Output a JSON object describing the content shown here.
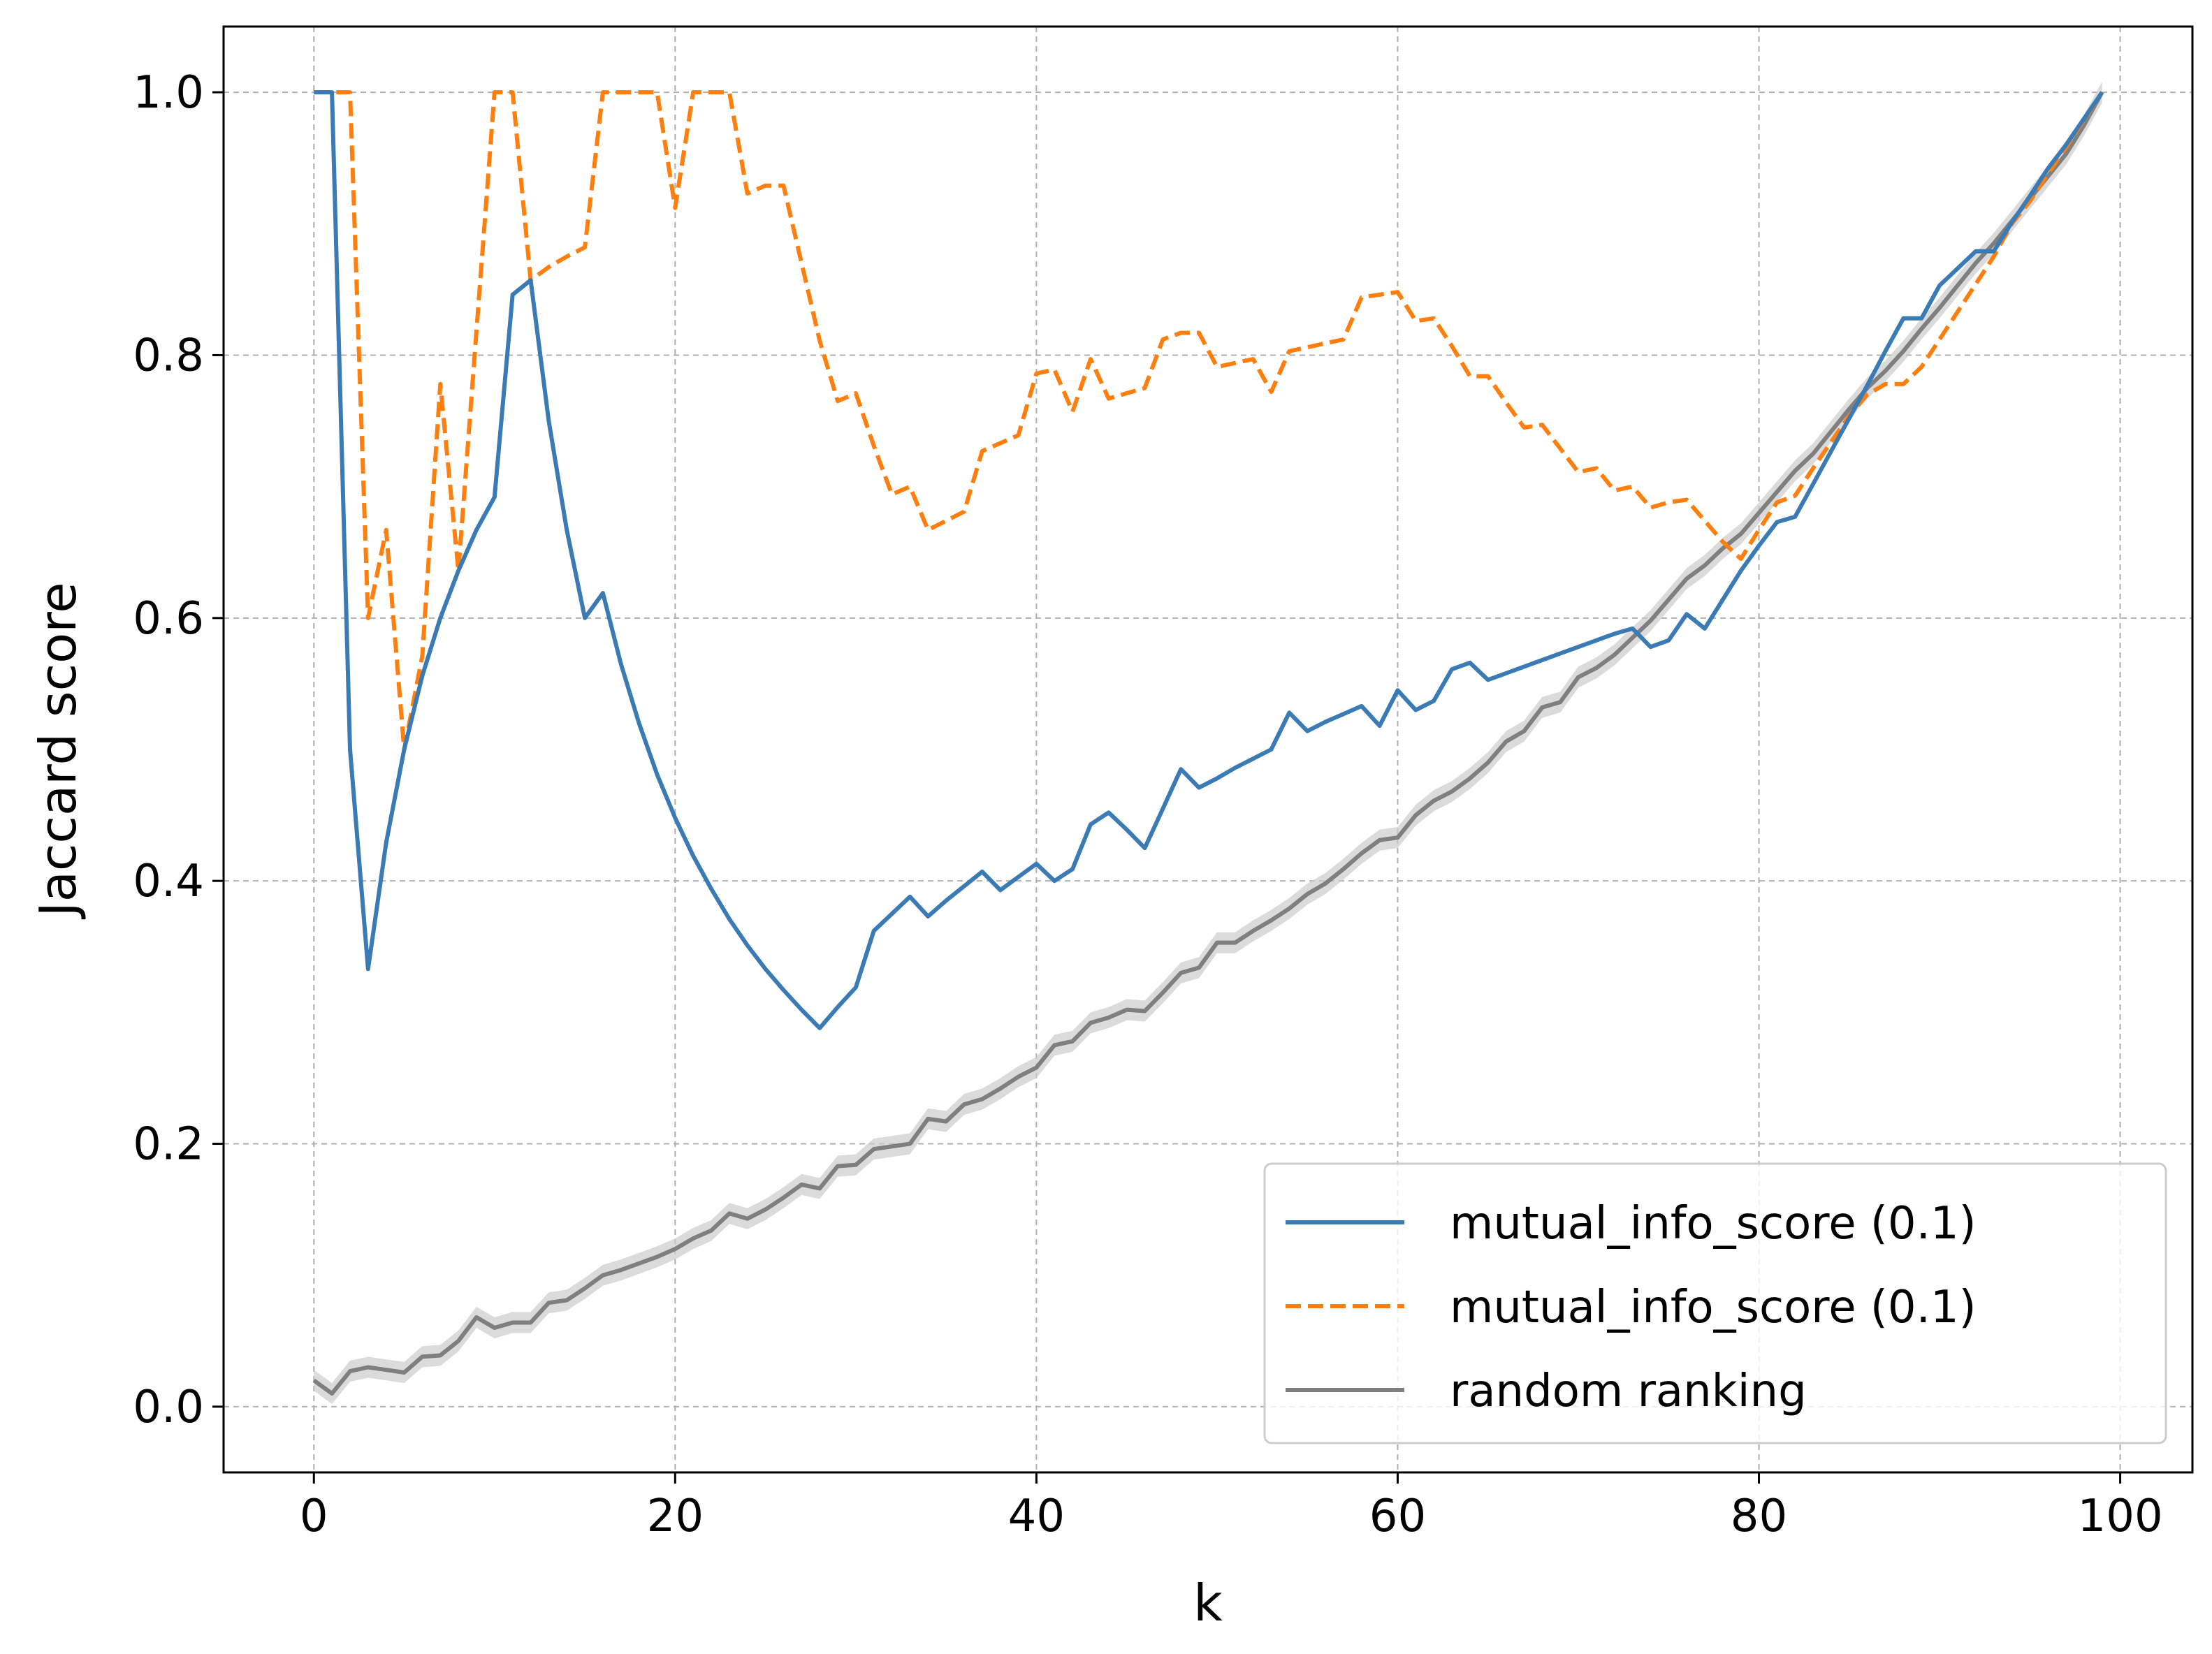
{
  "chart_data": {
    "type": "line",
    "title": "",
    "xlabel": "k",
    "ylabel": "Jaccard score",
    "xlim": [
      -5,
      104
    ],
    "ylim": [
      -0.05,
      1.05
    ],
    "xticks": [
      0,
      20,
      40,
      60,
      80,
      100
    ],
    "yticks": [
      0.0,
      0.2,
      0.4,
      0.6,
      0.8,
      1.0
    ],
    "xtick_labels": [
      "0",
      "20",
      "40",
      "60",
      "80",
      "100"
    ],
    "ytick_labels": [
      "0.0",
      "0.2",
      "0.4",
      "0.6",
      "0.8",
      "1.0"
    ],
    "grid": true,
    "legend_position": "lower-right",
    "series": [
      {
        "name": "mutual_info_score (0.1)",
        "color": "#3a7bb5",
        "style": "solid",
        "x": [
          0,
          1,
          2,
          3,
          4,
          5,
          6,
          7,
          8,
          9,
          10,
          11,
          12,
          13,
          14,
          15,
          16,
          17,
          18,
          19,
          20,
          21,
          22,
          23,
          24,
          25,
          26,
          27,
          28,
          29,
          30,
          31,
          32,
          33,
          34,
          35,
          36,
          37,
          38,
          39,
          40,
          41,
          42,
          43,
          44,
          45,
          46,
          47,
          48,
          49,
          50,
          51,
          52,
          53,
          54,
          55,
          56,
          57,
          58,
          59,
          60,
          61,
          62,
          63,
          64,
          65,
          66,
          67,
          68,
          69,
          70,
          71,
          72,
          73,
          74,
          75,
          76,
          77,
          78,
          79,
          80,
          81,
          82,
          83,
          84,
          85,
          86,
          87,
          88,
          89,
          90,
          91,
          92,
          93,
          94,
          95,
          96,
          97,
          98,
          99
        ],
        "y": [
          1.0,
          1.0,
          0.5,
          0.333,
          0.429,
          0.5,
          0.556,
          0.6,
          0.636,
          0.667,
          0.692,
          0.846,
          0.857,
          0.75,
          0.667,
          0.6,
          0.619,
          0.565,
          0.52,
          0.481,
          0.448,
          0.419,
          0.394,
          0.371,
          0.351,
          0.333,
          0.317,
          0.302,
          0.288,
          0.304,
          0.319,
          0.362,
          0.375,
          0.388,
          0.373,
          0.385,
          0.396,
          0.407,
          0.393,
          0.403,
          0.413,
          0.4,
          0.409,
          0.443,
          0.452,
          0.439,
          0.425,
          0.455,
          0.485,
          0.471,
          0.478,
          0.486,
          0.493,
          0.5,
          0.528,
          0.514,
          0.521,
          0.527,
          0.533,
          0.518,
          0.545,
          0.53,
          0.537,
          0.561,
          0.566,
          0.553,
          0.558,
          0.563,
          0.568,
          0.573,
          0.578,
          0.583,
          0.588,
          0.592,
          0.578,
          0.583,
          0.603,
          0.592,
          0.614,
          0.636,
          0.655,
          0.673,
          0.677,
          0.702,
          0.727,
          0.752,
          0.777,
          0.803,
          0.828,
          0.828,
          0.853,
          0.866,
          0.879,
          0.879,
          0.901,
          0.921,
          0.942,
          0.96,
          0.98,
          1.0
        ]
      },
      {
        "name": "mutual_info_score (0.1)",
        "color": "#ff7f0e",
        "style": "dashed",
        "x": [
          0,
          1,
          2,
          3,
          4,
          5,
          6,
          7,
          8,
          9,
          10,
          11,
          12,
          13,
          14,
          15,
          16,
          17,
          18,
          19,
          20,
          21,
          22,
          23,
          24,
          25,
          26,
          27,
          28,
          29,
          30,
          31,
          32,
          33,
          34,
          35,
          36,
          37,
          38,
          39,
          40,
          41,
          42,
          43,
          44,
          45,
          46,
          47,
          48,
          49,
          50,
          51,
          52,
          53,
          54,
          55,
          56,
          57,
          58,
          59,
          60,
          61,
          62,
          63,
          64,
          65,
          66,
          67,
          68,
          69,
          70,
          71,
          72,
          73,
          74,
          75,
          76,
          77,
          78,
          79,
          80,
          81,
          82,
          83,
          84,
          85,
          86,
          87,
          88,
          89,
          90,
          91,
          92,
          93,
          94,
          95,
          96,
          97,
          98,
          99
        ],
        "y": [
          1.0,
          1.0,
          1.0,
          0.6,
          0.667,
          0.5,
          0.571,
          0.778,
          0.636,
          0.818,
          1.0,
          1.0,
          0.857,
          0.867,
          0.875,
          0.882,
          1.0,
          1.0,
          1.0,
          1.0,
          0.912,
          1.0,
          1.0,
          1.0,
          0.923,
          0.929,
          0.929,
          0.87,
          0.811,
          0.765,
          0.771,
          0.731,
          0.694,
          0.7,
          0.667,
          0.674,
          0.681,
          0.727,
          0.733,
          0.739,
          0.786,
          0.789,
          0.757,
          0.797,
          0.767,
          0.771,
          0.775,
          0.812,
          0.817,
          0.817,
          0.791,
          0.794,
          0.797,
          0.772,
          0.803,
          0.806,
          0.809,
          0.812,
          0.844,
          0.846,
          0.848,
          0.826,
          0.828,
          0.807,
          0.784,
          0.784,
          0.764,
          0.745,
          0.747,
          0.729,
          0.711,
          0.714,
          0.697,
          0.7,
          0.684,
          0.688,
          0.69,
          0.674,
          0.658,
          0.645,
          0.667,
          0.688,
          0.693,
          0.714,
          0.734,
          0.754,
          0.77,
          0.778,
          0.778,
          0.791,
          0.812,
          0.833,
          0.854,
          0.875,
          0.9,
          0.917,
          0.938,
          0.958,
          0.979,
          1.0
        ]
      },
      {
        "name": "random ranking",
        "color": "#7f7f7f",
        "style": "solid",
        "band_color": "#cccccc",
        "band_halfwidth": 0.008,
        "x": [
          0,
          1,
          2,
          3,
          4,
          5,
          6,
          7,
          8,
          9,
          10,
          11,
          12,
          13,
          14,
          15,
          16,
          17,
          18,
          19,
          20,
          21,
          22,
          23,
          24,
          25,
          26,
          27,
          28,
          29,
          30,
          31,
          32,
          33,
          34,
          35,
          36,
          37,
          38,
          39,
          40,
          41,
          42,
          43,
          44,
          45,
          46,
          47,
          48,
          49,
          50,
          51,
          52,
          53,
          54,
          55,
          56,
          57,
          58,
          59,
          60,
          61,
          62,
          63,
          64,
          65,
          66,
          67,
          68,
          69,
          70,
          71,
          72,
          73,
          74,
          75,
          76,
          77,
          78,
          79,
          80,
          81,
          82,
          83,
          84,
          85,
          86,
          87,
          88,
          89,
          90,
          91,
          92,
          93,
          94,
          95,
          96,
          97,
          98,
          99
        ],
        "y": [
          0.02,
          0.01,
          0.027,
          0.03,
          0.028,
          0.026,
          0.038,
          0.039,
          0.05,
          0.068,
          0.06,
          0.064,
          0.064,
          0.079,
          0.081,
          0.09,
          0.1,
          0.104,
          0.109,
          0.114,
          0.12,
          0.128,
          0.134,
          0.147,
          0.143,
          0.15,
          0.159,
          0.169,
          0.166,
          0.183,
          0.184,
          0.196,
          0.198,
          0.2,
          0.219,
          0.217,
          0.23,
          0.234,
          0.242,
          0.251,
          0.258,
          0.275,
          0.278,
          0.292,
          0.296,
          0.302,
          0.301,
          0.315,
          0.33,
          0.334,
          0.353,
          0.353,
          0.362,
          0.37,
          0.379,
          0.39,
          0.398,
          0.409,
          0.421,
          0.431,
          0.433,
          0.45,
          0.461,
          0.468,
          0.478,
          0.49,
          0.506,
          0.514,
          0.532,
          0.536,
          0.555,
          0.562,
          0.572,
          0.585,
          0.598,
          0.614,
          0.63,
          0.64,
          0.653,
          0.664,
          0.68,
          0.696,
          0.712,
          0.725,
          0.742,
          0.759,
          0.775,
          0.788,
          0.803,
          0.82,
          0.836,
          0.853,
          0.87,
          0.885,
          0.902,
          0.919,
          0.936,
          0.953,
          0.975,
          1.0
        ]
      }
    ]
  }
}
